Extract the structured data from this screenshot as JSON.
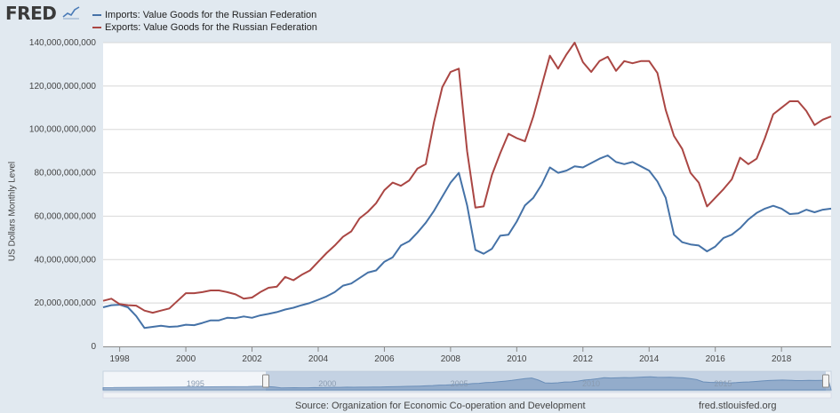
{
  "header": {
    "logo": "FRED"
  },
  "colors": {
    "imports": "#4572a7",
    "exports": "#aa4643",
    "background": "#e1e9f0",
    "plot": "#ffffff",
    "grid": "#d8d8d8"
  },
  "footer": {
    "source": "Source: Organization for Economic Co-operation and Development",
    "url": "fred.stlouisfed.org"
  },
  "navigator": {
    "labels": [
      "1995",
      "2000",
      "2005",
      "2010",
      "2015"
    ]
  },
  "chart_data": {
    "type": "line",
    "title": "",
    "xlabel": "",
    "ylabel": "US Dollars Monthly Level",
    "xlim": [
      1997.5,
      2019.5
    ],
    "ylim": [
      0,
      140000000000
    ],
    "x_ticks": [
      "1998",
      "2000",
      "2002",
      "2004",
      "2006",
      "2008",
      "2010",
      "2012",
      "2014",
      "2016",
      "2018"
    ],
    "y_ticks": [
      "0",
      "20,000,000,000",
      "40,000,000,000",
      "60,000,000,000",
      "80,000,000,000",
      "100,000,000,000",
      "120,000,000,000",
      "140,000,000,000"
    ],
    "grid": "horizontal",
    "legend_position": "top-left",
    "series": [
      {
        "name": "Imports: Value Goods for the Russian Federation",
        "color": "#4572a7",
        "x": [
          1997.5,
          1997.75,
          1998.0,
          1998.25,
          1998.5,
          1998.75,
          1999.0,
          1999.25,
          1999.5,
          1999.75,
          2000.0,
          2000.25,
          2000.5,
          2000.75,
          2001.0,
          2001.25,
          2001.5,
          2001.75,
          2002.0,
          2002.25,
          2002.5,
          2002.75,
          2003.0,
          2003.25,
          2003.5,
          2003.75,
          2004.0,
          2004.25,
          2004.5,
          2004.75,
          2005.0,
          2005.25,
          2005.5,
          2005.75,
          2006.0,
          2006.25,
          2006.5,
          2006.75,
          2007.0,
          2007.25,
          2007.5,
          2007.75,
          2008.0,
          2008.25,
          2008.5,
          2008.75,
          2009.0,
          2009.25,
          2009.5,
          2009.75,
          2010.0,
          2010.25,
          2010.5,
          2010.75,
          2011.0,
          2011.25,
          2011.5,
          2011.75,
          2012.0,
          2012.25,
          2012.5,
          2012.75,
          2013.0,
          2013.25,
          2013.5,
          2013.75,
          2014.0,
          2014.25,
          2014.5,
          2014.75,
          2015.0,
          2015.25,
          2015.5,
          2015.75,
          2016.0,
          2016.25,
          2016.5,
          2016.75,
          2017.0,
          2017.25,
          2017.5,
          2017.75,
          2018.0,
          2018.25,
          2018.5,
          2018.75,
          2019.0,
          2019.25,
          2019.5
        ],
        "values": [
          18000000000,
          19000000000,
          19200000000,
          18000000000,
          14000000000,
          8500000000,
          9000000000,
          9500000000,
          9000000000,
          9200000000,
          10000000000,
          9800000000,
          10800000000,
          12000000000,
          12000000000,
          13200000000,
          13000000000,
          13800000000,
          13200000000,
          14300000000,
          15000000000,
          15800000000,
          17000000000,
          17800000000,
          19000000000,
          20000000000,
          21500000000,
          23000000000,
          25000000000,
          28000000000,
          29000000000,
          31500000000,
          34000000000,
          35000000000,
          39000000000,
          41000000000,
          46500000000,
          48500000000,
          52500000000,
          57000000000,
          62500000000,
          69000000000,
          75500000000,
          80000000000,
          65000000000,
          44500000000,
          42700000000,
          45000000000,
          51000000000,
          51500000000,
          57500000000,
          65000000000,
          68500000000,
          74500000000,
          82500000000,
          80000000000,
          81000000000,
          83000000000,
          82500000000,
          84500000000,
          86500000000,
          88000000000,
          85000000000,
          84000000000,
          85000000000,
          83000000000,
          81000000000,
          76000000000,
          68500000000,
          51500000000,
          48000000000,
          47000000000,
          46500000000,
          43800000000,
          46000000000,
          50000000000,
          51500000000,
          54500000000,
          58500000000,
          61500000000,
          63500000000,
          64800000000,
          63500000000,
          61000000000,
          61300000000,
          63000000000,
          61800000000,
          63000000000,
          63500000000
        ]
      },
      {
        "name": "Exports: Value Goods for the Russian Federation",
        "color": "#aa4643",
        "x": [
          1997.5,
          1997.75,
          1998.0,
          1998.25,
          1998.5,
          1998.75,
          1999.0,
          1999.25,
          1999.5,
          1999.75,
          2000.0,
          2000.25,
          2000.5,
          2000.75,
          2001.0,
          2001.25,
          2001.5,
          2001.75,
          2002.0,
          2002.25,
          2002.5,
          2002.75,
          2003.0,
          2003.25,
          2003.5,
          2003.75,
          2004.0,
          2004.25,
          2004.5,
          2004.75,
          2005.0,
          2005.25,
          2005.5,
          2005.75,
          2006.0,
          2006.25,
          2006.5,
          2006.75,
          2007.0,
          2007.25,
          2007.5,
          2007.75,
          2008.0,
          2008.25,
          2008.5,
          2008.75,
          2009.0,
          2009.25,
          2009.5,
          2009.75,
          2010.0,
          2010.25,
          2010.5,
          2010.75,
          2011.0,
          2011.25,
          2011.5,
          2011.75,
          2012.0,
          2012.25,
          2012.5,
          2012.75,
          2013.0,
          2013.25,
          2013.5,
          2013.75,
          2014.0,
          2014.25,
          2014.5,
          2014.75,
          2015.0,
          2015.25,
          2015.5,
          2015.75,
          2016.0,
          2016.25,
          2016.5,
          2016.75,
          2017.0,
          2017.25,
          2017.5,
          2017.75,
          2018.0,
          2018.25,
          2018.5,
          2018.75,
          2019.0,
          2019.25,
          2019.5
        ],
        "values": [
          21000000000,
          22000000000,
          19500000000,
          19000000000,
          18800000000,
          16500000000,
          15500000000,
          16500000000,
          17500000000,
          21000000000,
          24500000000,
          24500000000,
          25000000000,
          25800000000,
          25800000000,
          25000000000,
          24000000000,
          22000000000,
          22500000000,
          25000000000,
          27000000000,
          27500000000,
          32000000000,
          30500000000,
          33000000000,
          35000000000,
          39000000000,
          43000000000,
          46500000000,
          50500000000,
          53000000000,
          59000000000,
          62000000000,
          66000000000,
          72000000000,
          75500000000,
          74000000000,
          76500000000,
          82000000000,
          84000000000,
          103500000000,
          119500000000,
          126500000000,
          128000000000,
          90000000000,
          64000000000,
          64500000000,
          79000000000,
          89000000000,
          98000000000,
          96000000000,
          94500000000,
          106000000000,
          120000000000,
          134000000000,
          128000000000,
          134500000000,
          140000000000,
          131000000000,
          126500000000,
          131500000000,
          133500000000,
          127000000000,
          131500000000,
          130500000000,
          131500000000,
          131500000000,
          126000000000,
          109000000000,
          97000000000,
          91000000000,
          80000000000,
          75500000000,
          64500000000,
          68500000000,
          72500000000,
          77000000000,
          87000000000,
          84000000000,
          86500000000,
          96000000000,
          107000000000,
          110000000000,
          113000000000,
          113000000000,
          108500000000,
          102000000000,
          104500000000,
          106000000000
        ]
      }
    ]
  }
}
